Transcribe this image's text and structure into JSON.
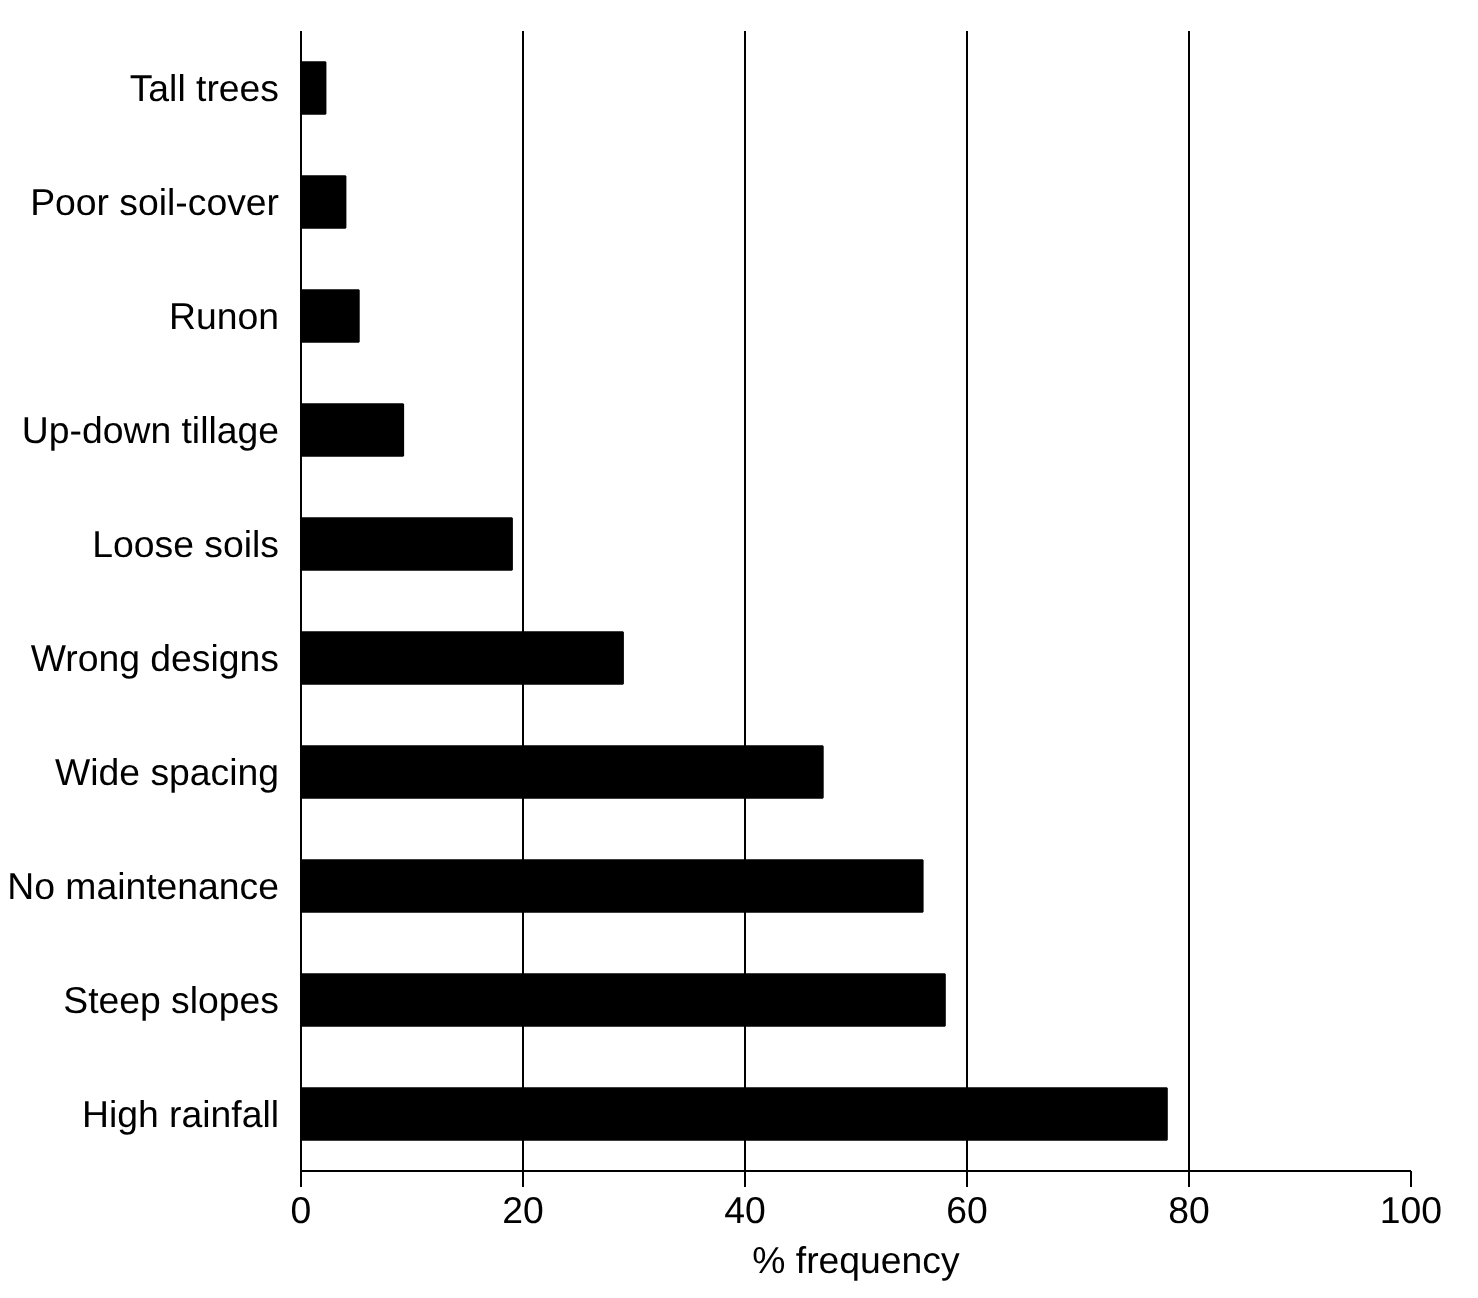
{
  "chart_data": {
    "type": "bar",
    "orientation": "horizontal",
    "xlabel": "% frequency",
    "categories": [
      "Tall trees",
      "Poor soil-cover",
      "Runon",
      "Up-down tillage",
      "Loose soils",
      "Wrong designs",
      "Wide spacing",
      "No maintenance",
      "Steep slopes",
      "High rainfall"
    ],
    "values": [
      2.2,
      4,
      5.2,
      9.2,
      19,
      29,
      47,
      56,
      58,
      78
    ],
    "color": "#000000",
    "xlim": [
      0,
      100
    ],
    "xticks": [
      0,
      20,
      40,
      60,
      80,
      100
    ],
    "grid": "x"
  }
}
